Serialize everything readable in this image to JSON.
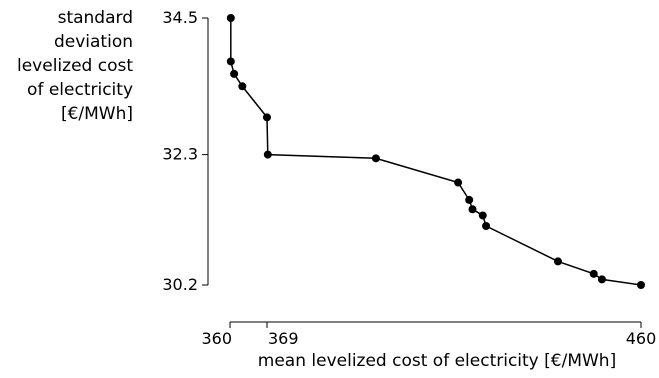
{
  "chart_data": {
    "type": "line",
    "xlabel": "mean levelized cost of electricity [€/MWh]",
    "ylabel_lines": [
      "standard",
      "deviation",
      "levelized cost",
      "of electricity",
      "[€/MWh]"
    ],
    "xlim": [
      360,
      460
    ],
    "ylim": [
      30.2,
      34.5
    ],
    "x_ticks": [
      {
        "value": 360,
        "label": "360"
      },
      {
        "value": 369,
        "label": "369"
      },
      {
        "value": 460,
        "label": "460"
      }
    ],
    "y_ticks": [
      {
        "value": 34.5,
        "label": "34.5"
      },
      {
        "value": 32.3,
        "label": "32.3"
      },
      {
        "value": 30.2,
        "label": "30.2"
      }
    ],
    "grid": false,
    "series": [
      {
        "color": "#000000",
        "marker": "circle",
        "points": [
          {
            "x": 360.2,
            "y": 34.5
          },
          {
            "x": 360.2,
            "y": 33.8
          },
          {
            "x": 361.0,
            "y": 33.6
          },
          {
            "x": 363.0,
            "y": 33.4
          },
          {
            "x": 369.0,
            "y": 32.9
          },
          {
            "x": 369.2,
            "y": 32.3
          },
          {
            "x": 395.5,
            "y": 32.24
          },
          {
            "x": 415.5,
            "y": 31.85
          },
          {
            "x": 418.2,
            "y": 31.57
          },
          {
            "x": 419.0,
            "y": 31.42
          },
          {
            "x": 421.5,
            "y": 31.32
          },
          {
            "x": 422.3,
            "y": 31.15
          },
          {
            "x": 439.8,
            "y": 30.58
          },
          {
            "x": 448.5,
            "y": 30.38
          },
          {
            "x": 450.5,
            "y": 30.29
          },
          {
            "x": 460.0,
            "y": 30.2
          }
        ]
      }
    ]
  }
}
